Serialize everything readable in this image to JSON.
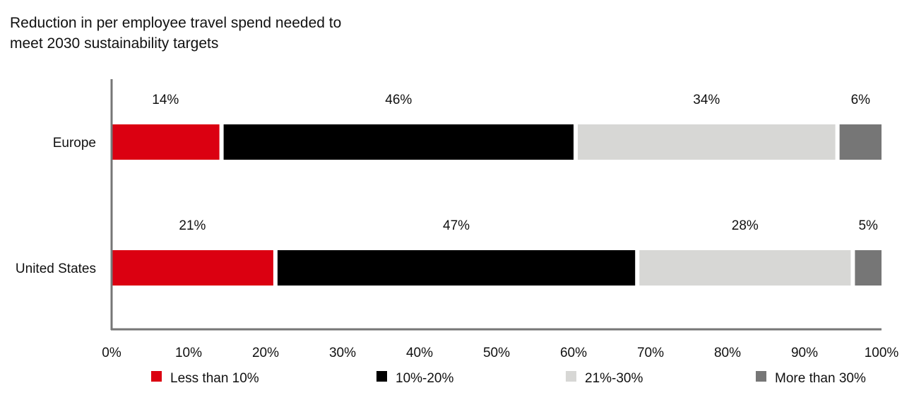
{
  "chart_data": {
    "type": "bar",
    "orientation": "horizontal",
    "stacked": true,
    "title_lines": [
      "Reduction in per employee travel spend needed to",
      "meet 2030 sustainability targets"
    ],
    "categories": [
      "Europe",
      "United States"
    ],
    "series": [
      {
        "name": "Less than 10%",
        "color": "#db0011",
        "values": [
          14,
          21
        ],
        "labels": [
          "14%",
          "21%"
        ]
      },
      {
        "name": "10%-20%",
        "color": "#000000",
        "values": [
          46,
          47
        ],
        "labels": [
          "46%",
          "47%"
        ]
      },
      {
        "name": "21%-30%",
        "color": "#d7d7d5",
        "values": [
          34,
          28
        ],
        "labels": [
          "34%",
          "28%"
        ]
      },
      {
        "name": "More than 30%",
        "color": "#767676",
        "values": [
          6,
          5
        ],
        "labels": [
          "6%",
          "5%"
        ]
      }
    ],
    "x_ticks": [
      "0%",
      "10%",
      "20%",
      "30%",
      "40%",
      "50%",
      "60%",
      "70%",
      "80%",
      "90%",
      "100%"
    ],
    "xlim": [
      0,
      100
    ],
    "grid": false,
    "legend_position": "bottom"
  }
}
